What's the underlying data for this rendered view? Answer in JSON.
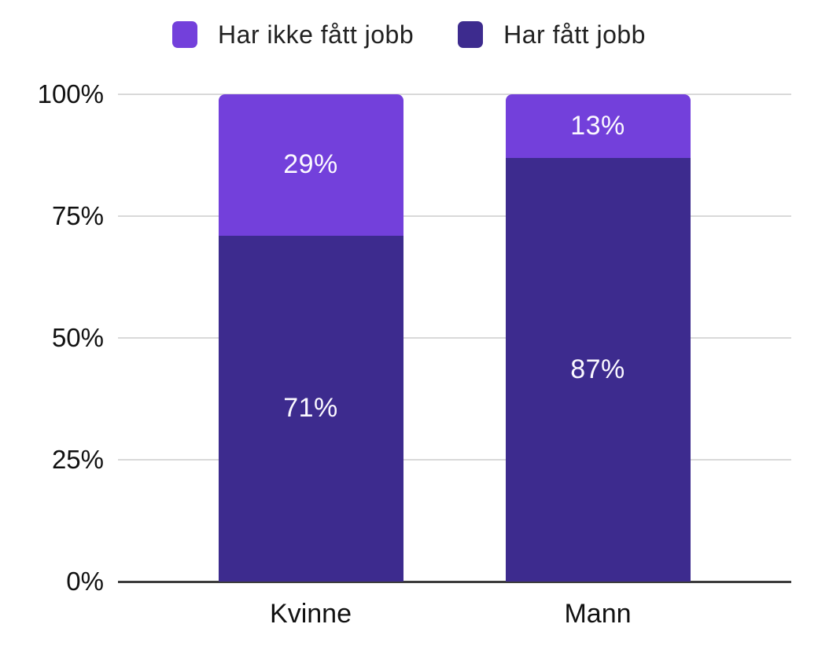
{
  "chart_data": {
    "type": "bar",
    "stacked": true,
    "percent_stacked": true,
    "categories": [
      "Kvinne",
      "Mann"
    ],
    "series": [
      {
        "name": "Har ikke fått jobb",
        "color": "#7340DB",
        "values": [
          29,
          13
        ],
        "labels": [
          "29%",
          "13%"
        ]
      },
      {
        "name": "Har fått jobb",
        "color": "#3D2B8E",
        "values": [
          71,
          87
        ],
        "labels": [
          "71%",
          "87%"
        ]
      }
    ],
    "stack_order_bottom_to_top": [
      "Har fått jobb",
      "Har ikke fått jobb"
    ],
    "y_axis": {
      "min": 0,
      "max": 100,
      "ticks": [
        {
          "value": 0,
          "label": "0%"
        },
        {
          "value": 25,
          "label": "25%"
        },
        {
          "value": 50,
          "label": "50%"
        },
        {
          "value": 75,
          "label": "75%"
        },
        {
          "value": 100,
          "label": "100%"
        }
      ]
    },
    "legend_position": "top",
    "grid_on": true,
    "colors": {
      "grid": "#d9d9d9",
      "axis": "#3c3c3c",
      "bar_label_text": "#fbf9ff",
      "tick_text": "#111111"
    }
  }
}
